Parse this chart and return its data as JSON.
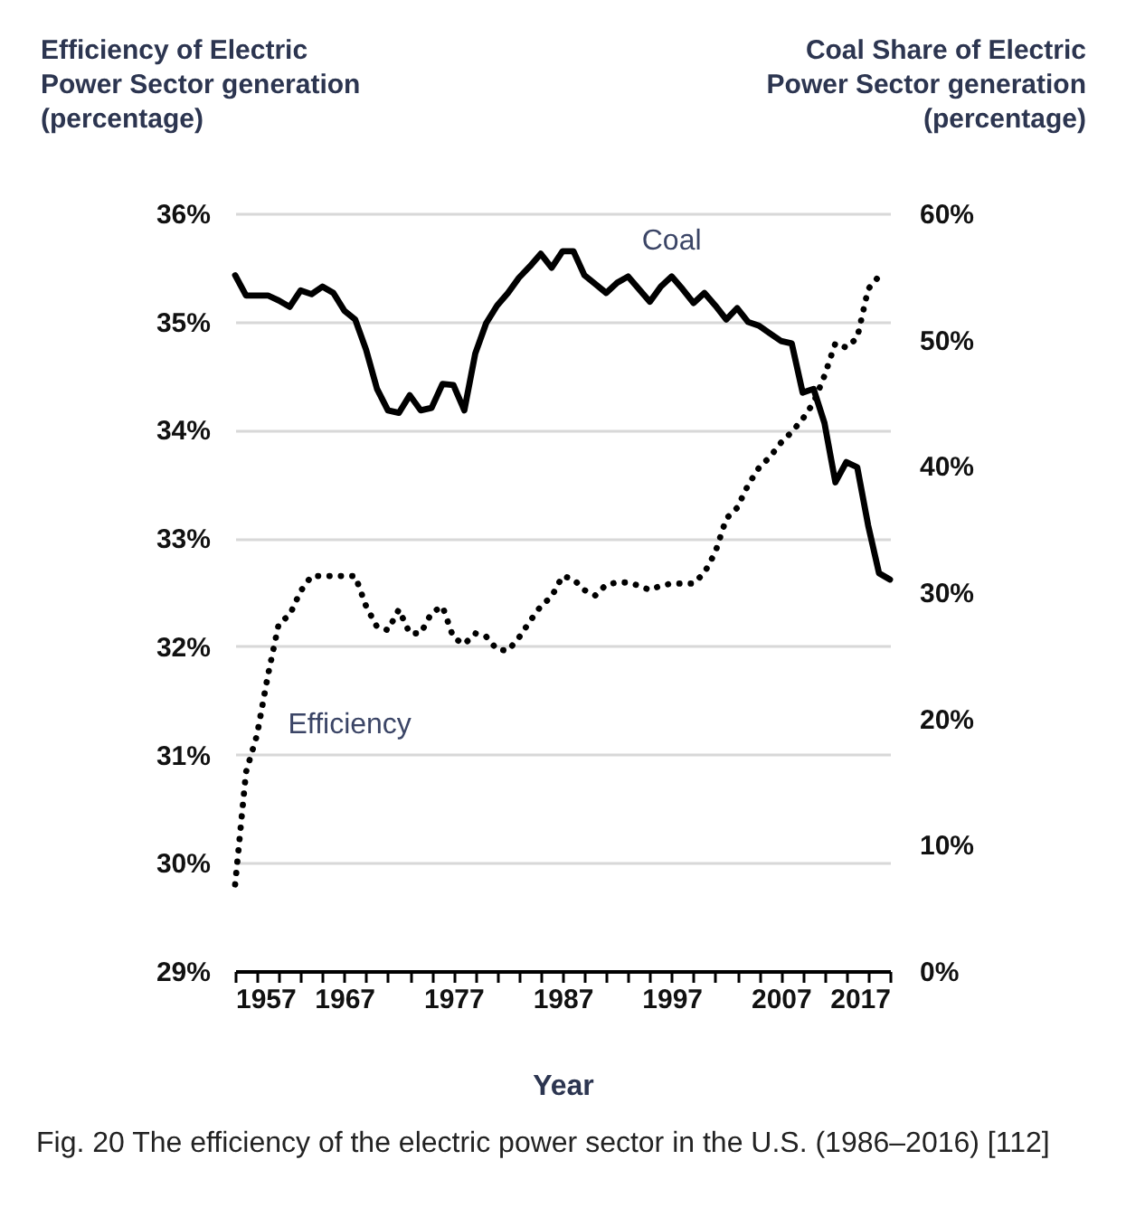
{
  "chart_data": {
    "type": "line",
    "xlabel": "Year",
    "ylabel": "Efficiency of Electric\nPower Sector generation\n(percentage)",
    "y2label": "Coal Share of Electric\nPower Sector generation\n(percentage)",
    "annotations": [
      "Fig. 20 The efficiency of the electric power sector in the U.S. (1986–2016) [112]"
    ],
    "xlim": [
      1957,
      2017
    ],
    "xticks": [
      {
        "value": 1957,
        "label": "1957"
      },
      {
        "value": 1959,
        "label": null
      },
      {
        "value": 1961,
        "label": null
      },
      {
        "value": 1963,
        "label": null
      },
      {
        "value": 1965,
        "label": null
      },
      {
        "value": 1967,
        "label": "1967"
      },
      {
        "value": 1969,
        "label": null
      },
      {
        "value": 1971,
        "label": null
      },
      {
        "value": 1973,
        "label": null
      },
      {
        "value": 1975,
        "label": null
      },
      {
        "value": 1977,
        "label": "1977"
      },
      {
        "value": 1979,
        "label": null
      },
      {
        "value": 1981,
        "label": null
      },
      {
        "value": 1983,
        "label": null
      },
      {
        "value": 1985,
        "label": null
      },
      {
        "value": 1987,
        "label": "1987"
      },
      {
        "value": 1989,
        "label": null
      },
      {
        "value": 1991,
        "label": null
      },
      {
        "value": 1993,
        "label": null
      },
      {
        "value": 1995,
        "label": null
      },
      {
        "value": 1997,
        "label": "1997"
      },
      {
        "value": 1999,
        "label": null
      },
      {
        "value": 2001,
        "label": null
      },
      {
        "value": 2003,
        "label": null
      },
      {
        "value": 2005,
        "label": null
      },
      {
        "value": 2007,
        "label": "2007"
      },
      {
        "value": 2009,
        "label": null
      },
      {
        "value": 2011,
        "label": null
      },
      {
        "value": 2013,
        "label": null
      },
      {
        "value": 2015,
        "label": null
      },
      {
        "value": 2017,
        "label": "2017"
      }
    ],
    "ylim": [
      29,
      36
    ],
    "yticks": [
      {
        "value": 29,
        "label": "29%"
      },
      {
        "value": 30,
        "label": "30%"
      },
      {
        "value": 31,
        "label": "31%"
      },
      {
        "value": 32,
        "label": "32%"
      },
      {
        "value": 33,
        "label": "33%"
      },
      {
        "value": 34,
        "label": "34%"
      },
      {
        "value": 35,
        "label": "35%"
      },
      {
        "value": 36,
        "label": "36%"
      }
    ],
    "y2lim": [
      0,
      60
    ],
    "y2ticks": [
      {
        "value": 0,
        "label": "0%"
      },
      {
        "value": 10,
        "label": "10%"
      },
      {
        "value": 20,
        "label": "20%"
      },
      {
        "value": 30,
        "label": "30%"
      },
      {
        "value": 40,
        "label": "40%"
      },
      {
        "value": 50,
        "label": "50%"
      },
      {
        "value": 60,
        "label": "60%"
      }
    ],
    "grid": "y",
    "marker": "none",
    "series": [
      {
        "name": "Coal",
        "color": "#000000",
        "axis": "y2",
        "line_style": "solid",
        "x": [
          1957,
          1958,
          1959,
          1960,
          1961,
          1962,
          1963,
          1964,
          1965,
          1966,
          1967,
          1968,
          1969,
          1970,
          1971,
          1972,
          1973,
          1974,
          1975,
          1976,
          1977,
          1978,
          1979,
          1980,
          1981,
          1982,
          1983,
          1984,
          1985,
          1986,
          1987,
          1988,
          1989,
          1990,
          1991,
          1992,
          1993,
          1994,
          1995,
          1996,
          1997,
          1998,
          1999,
          2000,
          2001,
          2002,
          2003,
          2004,
          2005,
          2006,
          2007,
          2008,
          2009,
          2010,
          2011,
          2012,
          2013,
          2014,
          2015,
          2016,
          2017
        ],
        "values": [
          55.1,
          53.5,
          53.5,
          53.5,
          53.1,
          52.6,
          53.9,
          53.6,
          54.2,
          53.7,
          52.3,
          51.6,
          49.2,
          46.1,
          44.4,
          44.2,
          45.6,
          44.4,
          44.6,
          46.5,
          46.4,
          44.4,
          48.9,
          51.3,
          52.7,
          53.7,
          54.9,
          55.8,
          56.8,
          55.7,
          57.0,
          57.0,
          55.1,
          54.4,
          53.7,
          54.5,
          55.0,
          54.0,
          53.0,
          54.2,
          55.0,
          54.0,
          52.9,
          53.7,
          52.7,
          51.6,
          52.5,
          51.4,
          51.1,
          50.5,
          49.9,
          49.7,
          45.8,
          46.1,
          43.4,
          38.7,
          40.3,
          39.9,
          35.3,
          31.5,
          31.0
        ]
      },
      {
        "name": "Efficiency",
        "color": "#000000",
        "axis": "y",
        "line_style": "dotted",
        "x": [
          1957,
          1958,
          1959,
          1960,
          1961,
          1962,
          1963,
          1964,
          1965,
          1966,
          1967,
          1968,
          1969,
          1970,
          1971,
          1972,
          1973,
          1974,
          1975,
          1976,
          1977,
          1978,
          1979,
          1980,
          1981,
          1982,
          1983,
          1984,
          1985,
          1986,
          1987,
          1988,
          1989,
          1990,
          1991,
          1992,
          1993,
          1994,
          1995,
          1996,
          1997,
          1998,
          1999,
          2000,
          2001,
          2002,
          2003,
          2004,
          2005,
          2006,
          2007,
          2008,
          2009,
          2010,
          2011,
          2012,
          2013,
          2014,
          2015,
          2016
        ],
        "values": [
          29.8,
          30.84,
          31.18,
          31.73,
          32.21,
          32.29,
          32.51,
          32.65,
          32.65,
          32.65,
          32.65,
          32.65,
          32.37,
          32.18,
          32.15,
          32.34,
          32.12,
          32.12,
          32.31,
          32.37,
          32.08,
          32.02,
          32.12,
          32.09,
          31.97,
          31.96,
          32.08,
          32.23,
          32.37,
          32.46,
          32.65,
          32.62,
          32.52,
          32.47,
          32.57,
          32.59,
          32.59,
          32.56,
          32.52,
          32.56,
          32.58,
          32.58,
          32.58,
          32.68,
          32.87,
          33.18,
          33.28,
          33.49,
          33.65,
          33.75,
          33.88,
          33.98,
          34.1,
          34.25,
          34.5,
          34.8,
          34.76,
          34.85,
          35.3,
          35.42
        ]
      }
    ]
  }
}
